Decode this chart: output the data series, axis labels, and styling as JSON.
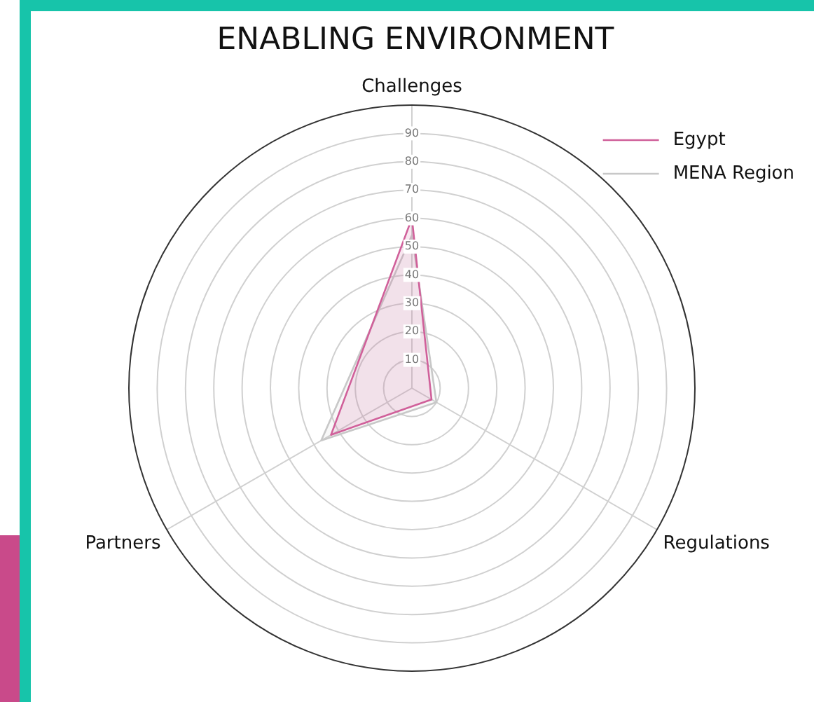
{
  "chart_data": {
    "type": "radar",
    "title": "ENABLING ENVIRONMENT",
    "categories": [
      "Challenges",
      "Regulations",
      "Partners"
    ],
    "series": [
      {
        "name": "Egypt",
        "color": "#d0609a",
        "values": [
          60,
          8,
          33
        ]
      },
      {
        "name": "MENA Region",
        "color": "#c8c8c8",
        "values": [
          54,
          10,
          37
        ]
      }
    ],
    "ylim": [
      0,
      100
    ],
    "yticks": [
      10,
      20,
      30,
      40,
      50,
      60,
      70,
      80,
      90
    ],
    "grid": true,
    "legend": "top right"
  }
}
